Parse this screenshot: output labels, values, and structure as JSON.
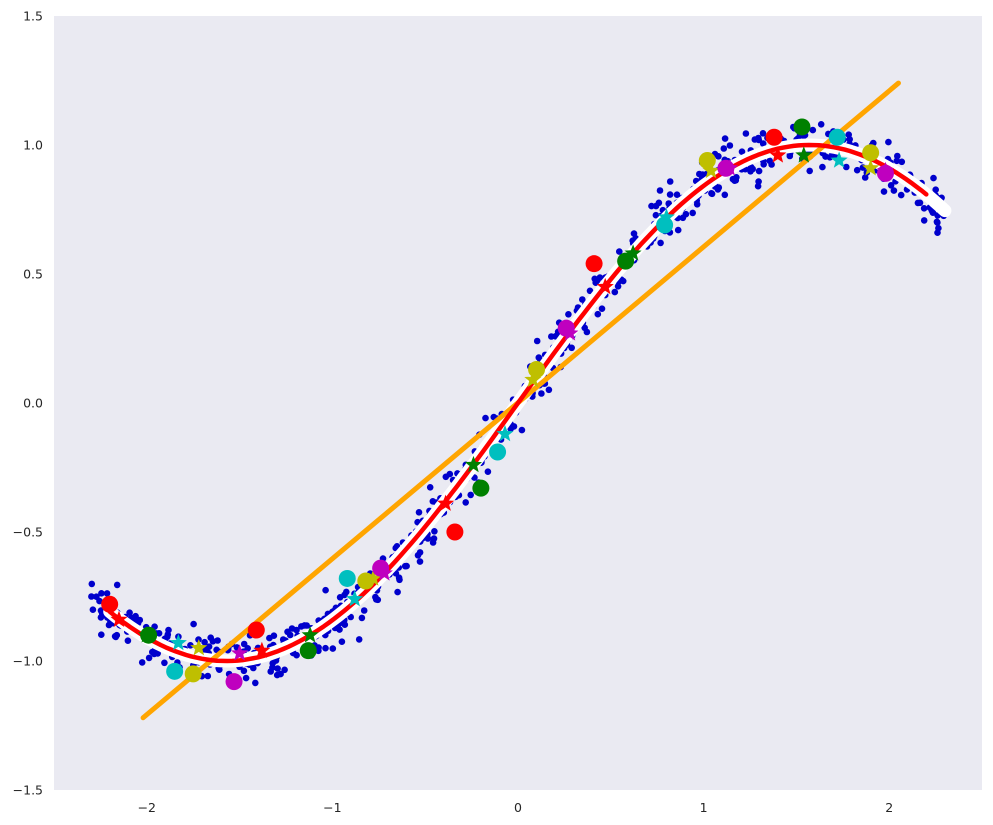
{
  "chart_data": {
    "type": "scatter",
    "title": "",
    "xlabel": "",
    "ylabel": "",
    "xlim": [
      -2.5,
      2.5
    ],
    "ylim": [
      -1.5,
      1.5
    ],
    "grid": false,
    "background": "#eaeaf2",
    "x_ticks": [
      -2,
      -1,
      0,
      1,
      2
    ],
    "x_tick_labels": [
      "−2",
      "−1",
      "0",
      "1",
      "2"
    ],
    "y_ticks": [
      -1.5,
      -1.0,
      -0.5,
      0.0,
      0.5,
      1.0,
      1.5
    ],
    "y_tick_labels": [
      "−1.5",
      "−1.0",
      "−0.5",
      "0.0",
      "0.5",
      "1.0",
      "1.5"
    ],
    "noisy_samples": {
      "color": "#0000cc",
      "count": 700,
      "x_range": [
        -2.3,
        2.3
      ],
      "function": "sin(x)",
      "noise_sd": 0.05
    },
    "reference_curve": {
      "color": "#ffffff",
      "x_range": [
        -2.2,
        2.3
      ],
      "function": "sin(x)"
    },
    "dashed_curve": {
      "color": "#00008b",
      "x_range": [
        -2.2,
        2.2
      ],
      "function": "sin(x)"
    },
    "linear_fit": {
      "color": "#ffa500",
      "x": [
        -2.02,
        2.05
      ],
      "y": [
        -1.22,
        1.24
      ]
    },
    "fitted_curve": {
      "color": "#ff0000",
      "x_range": [
        -2.2,
        2.2
      ],
      "function": "sin(x)"
    },
    "circle_markers": [
      {
        "color": "#ff0000",
        "points": [
          [
            -2.2,
            -0.78
          ],
          [
            -1.41,
            -0.88
          ],
          [
            -0.34,
            -0.5
          ],
          [
            0.41,
            0.54
          ],
          [
            1.38,
            1.03
          ]
        ]
      },
      {
        "color": "#008000",
        "points": [
          [
            -1.99,
            -0.9
          ],
          [
            -1.13,
            -0.96
          ],
          [
            -0.2,
            -0.33
          ],
          [
            0.58,
            0.55
          ],
          [
            1.53,
            1.07
          ]
        ]
      },
      {
        "color": "#00bfbf",
        "points": [
          [
            -1.85,
            -1.04
          ],
          [
            -0.92,
            -0.68
          ],
          [
            -0.11,
            -0.19
          ],
          [
            0.79,
            0.69
          ],
          [
            1.72,
            1.03
          ]
        ]
      },
      {
        "color": "#bfbf00",
        "points": [
          [
            -1.75,
            -1.05
          ],
          [
            -0.82,
            -0.69
          ],
          [
            0.1,
            0.13
          ],
          [
            1.02,
            0.94
          ],
          [
            1.9,
            0.97
          ]
        ]
      },
      {
        "color": "#bf00bf",
        "points": [
          [
            -1.53,
            -1.08
          ],
          [
            -0.74,
            -0.64
          ],
          [
            0.26,
            0.29
          ],
          [
            1.12,
            0.91
          ],
          [
            1.98,
            0.89
          ]
        ]
      }
    ],
    "star_markers": [
      {
        "color": "#ff0000",
        "points": [
          [
            -2.15,
            -0.84
          ],
          [
            -1.38,
            -0.96
          ],
          [
            -0.39,
            -0.39
          ],
          [
            0.47,
            0.45
          ],
          [
            1.4,
            0.96
          ]
        ]
      },
      {
        "color": "#008000",
        "points": [
          [
            -2.0,
            -0.9
          ],
          [
            -1.12,
            -0.9
          ],
          [
            -0.24,
            -0.24
          ],
          [
            0.62,
            0.58
          ],
          [
            1.54,
            0.96
          ]
        ]
      },
      {
        "color": "#00bfbf",
        "points": [
          [
            -1.83,
            -0.93
          ],
          [
            -0.88,
            -0.76
          ],
          [
            -0.07,
            -0.12
          ],
          [
            0.8,
            0.72
          ],
          [
            1.73,
            0.94
          ]
        ]
      },
      {
        "color": "#bfbf00",
        "points": [
          [
            -1.72,
            -0.95
          ],
          [
            -0.78,
            -0.68
          ],
          [
            0.08,
            0.09
          ],
          [
            1.04,
            0.9
          ],
          [
            1.9,
            0.91
          ]
        ]
      },
      {
        "color": "#bf00bf",
        "points": [
          [
            -1.5,
            -0.97
          ],
          [
            -0.72,
            -0.66
          ],
          [
            0.28,
            0.27
          ],
          [
            1.14,
            0.91
          ],
          [
            1.98,
            0.9
          ]
        ]
      }
    ]
  }
}
